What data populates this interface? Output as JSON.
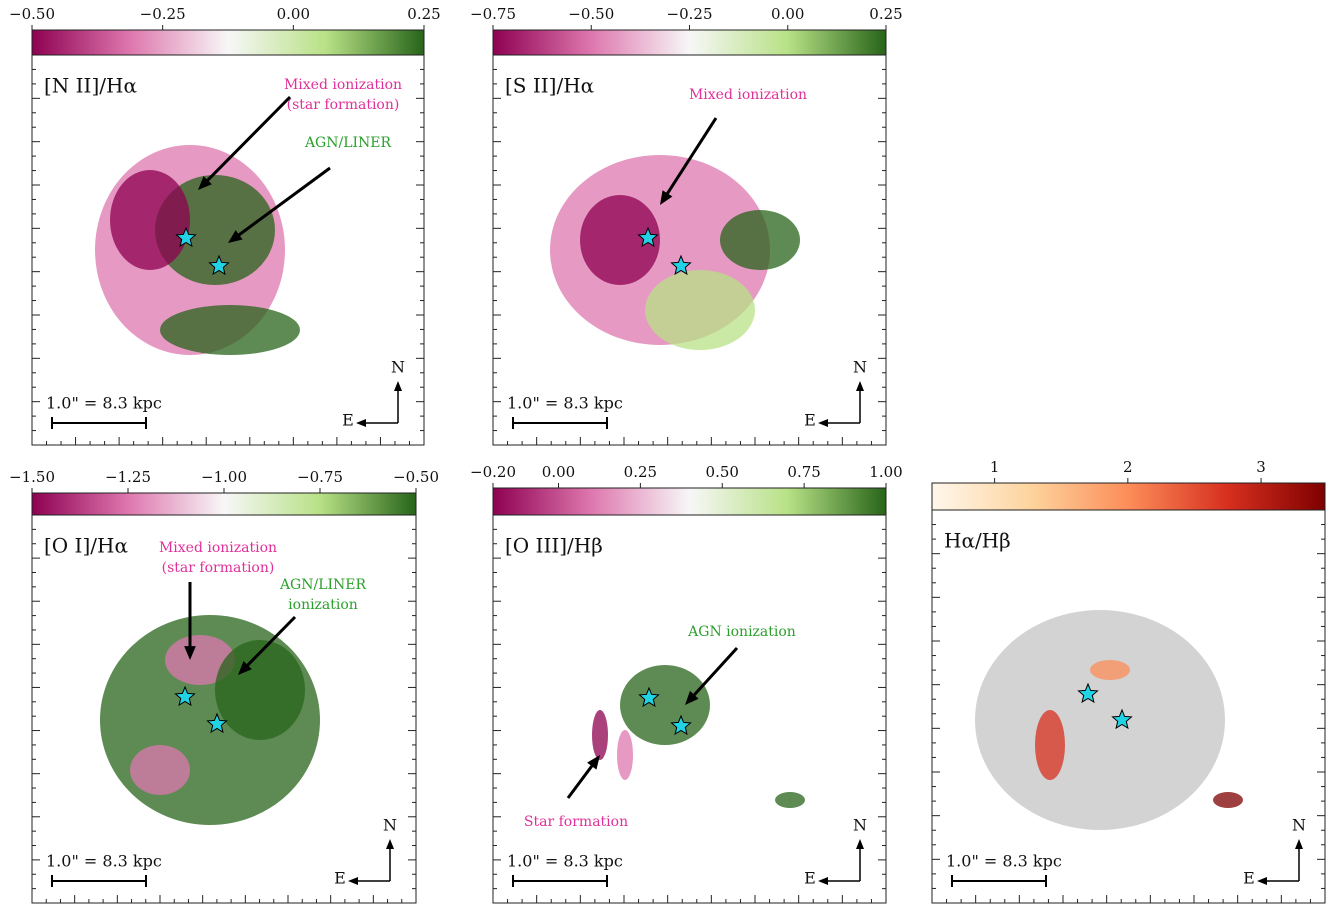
{
  "panels": [
    {
      "label": "[N II]/Hα",
      "colorbar": {
        "lim": [
          -0.5,
          0.25
        ],
        "cmap": [
          "#8e0152",
          "#de77ae",
          "#f7f7f7",
          "#b8e186",
          "#276419"
        ],
        "ticks": [
          {
            "value": -0.5,
            "label": "−0.50"
          },
          {
            "value": -0.25,
            "label": "−0.25"
          },
          {
            "value": 0,
            "label": "0.00"
          },
          {
            "value": 0.25,
            "label": "0.25"
          }
        ]
      },
      "annotations": [
        {
          "lines": [
            "Mixed ionization",
            "(star formation)"
          ],
          "color": "#e0309a"
        },
        {
          "lines": [
            "AGN/LINER"
          ],
          "color": "#2ca02c"
        }
      ],
      "scale_bar": "1.0\" = 8.3 kpc",
      "compass": {
        "north": "N",
        "east": "E"
      }
    },
    {
      "label": "[S II]/Hα",
      "colorbar": {
        "lim": [
          -0.75,
          0.25
        ],
        "cmap": [
          "#8e0152",
          "#de77ae",
          "#f7f7f7",
          "#b8e186",
          "#276419"
        ],
        "ticks": [
          {
            "value": -0.75,
            "label": "−0.75"
          },
          {
            "value": -0.5,
            "label": "−0.50"
          },
          {
            "value": -0.25,
            "label": "−0.25"
          },
          {
            "value": 0,
            "label": "0.00"
          },
          {
            "value": 0.25,
            "label": "0.25"
          }
        ]
      },
      "annotations": [
        {
          "lines": [
            "Mixed ionization"
          ],
          "color": "#e0309a"
        }
      ],
      "scale_bar": "1.0\" = 8.3 kpc",
      "compass": {
        "north": "N",
        "east": "E"
      }
    },
    {
      "label": "[O I]/Hα",
      "colorbar": {
        "lim": [
          -1.5,
          -0.5
        ],
        "cmap": [
          "#8e0152",
          "#de77ae",
          "#f7f7f7",
          "#b8e186",
          "#276419"
        ],
        "ticks": [
          {
            "value": -1.5,
            "label": "−1.50"
          },
          {
            "value": -1.25,
            "label": "−1.25"
          },
          {
            "value": -1,
            "label": "−1.00"
          },
          {
            "value": -0.75,
            "label": "−0.75"
          },
          {
            "value": -0.5,
            "label": "−0.50"
          }
        ]
      },
      "annotations": [
        {
          "lines": [
            "Mixed ionization",
            "(star formation)"
          ],
          "color": "#e0309a"
        },
        {
          "lines": [
            "AGN/LINER",
            "ionization"
          ],
          "color": "#2ca02c"
        }
      ],
      "scale_bar": "1.0\" = 8.3 kpc",
      "compass": {
        "north": "N",
        "east": "E"
      }
    },
    {
      "label": "[O III]/Hβ",
      "colorbar": {
        "lim": [
          -0.2,
          1
        ],
        "cmap": [
          "#8e0152",
          "#de77ae",
          "#f7f7f7",
          "#b8e186",
          "#276419"
        ],
        "ticks": [
          {
            "value": -0.2,
            "label": "−0.20"
          },
          {
            "value": 0,
            "label": "0.00"
          },
          {
            "value": 0.25,
            "label": "0.25"
          },
          {
            "value": 0.5,
            "label": "0.50"
          },
          {
            "value": 0.75,
            "label": "0.75"
          },
          {
            "value": 1,
            "label": "1.00"
          }
        ]
      },
      "annotations": [
        {
          "lines": [
            "AGN ionization"
          ],
          "color": "#2ca02c"
        },
        {
          "lines": [
            "Star formation"
          ],
          "color": "#e0309a"
        }
      ],
      "scale_bar": "1.0\" = 8.3 kpc",
      "compass": {
        "north": "N",
        "east": "E"
      }
    },
    {
      "label": "Hα/Hβ",
      "colorbar": {
        "lim": [
          0.53,
          3.48
        ],
        "cmap": [
          "#fff7ec",
          "#fdd49e",
          "#fc8d59",
          "#d7301f",
          "#7f0000"
        ],
        "ticks": [
          1,
          2,
          3
        ]
      },
      "annotations": [],
      "scale_bar": "1.0\" = 8.3 kpc",
      "compass": {
        "north": "N",
        "east": "E"
      }
    }
  ]
}
